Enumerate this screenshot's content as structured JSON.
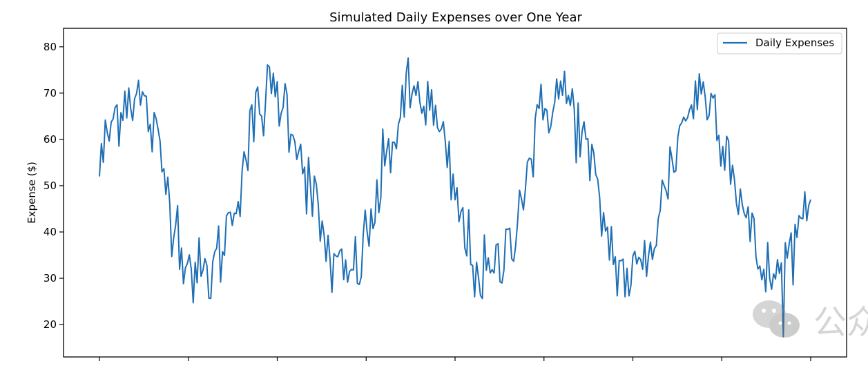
{
  "chart_data": {
    "type": "line",
    "title": "Simulated Daily Expenses over One Year",
    "xlabel": "",
    "ylabel": "Expense ($)",
    "yticks": [
      20,
      30,
      40,
      50,
      60,
      70,
      80
    ],
    "ylim": [
      13,
      84
    ],
    "x_tick_count": 9,
    "x_tick_labels_visible": false,
    "grid": false,
    "legend_position": "upper right",
    "line_color": "#1f6fb4",
    "series": [
      {
        "name": "Daily Expenses",
        "count": 365,
        "mean": 50,
        "amplitude": 20,
        "period_days": 73,
        "noise_sd": 4.2,
        "start_value": 52,
        "end_value": 47,
        "min_value": 16.6,
        "max_value": 81.0
      }
    ]
  },
  "watermark": {
    "text": "公众",
    "icon": "wechat-icon"
  }
}
